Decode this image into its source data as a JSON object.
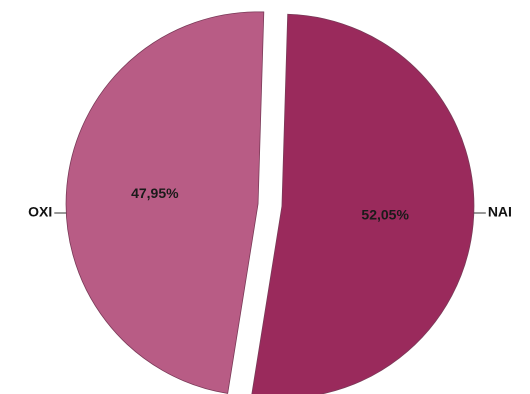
{
  "chart_data": {
    "type": "pie",
    "categories": [
      "NAI",
      "OXI"
    ],
    "values": [
      52.05,
      47.95
    ],
    "value_labels": [
      "52,05%",
      "47,95%"
    ],
    "colors": [
      "#9a2a5c",
      "#b85c85"
    ],
    "exploded": true,
    "legend": "none",
    "title": ""
  }
}
